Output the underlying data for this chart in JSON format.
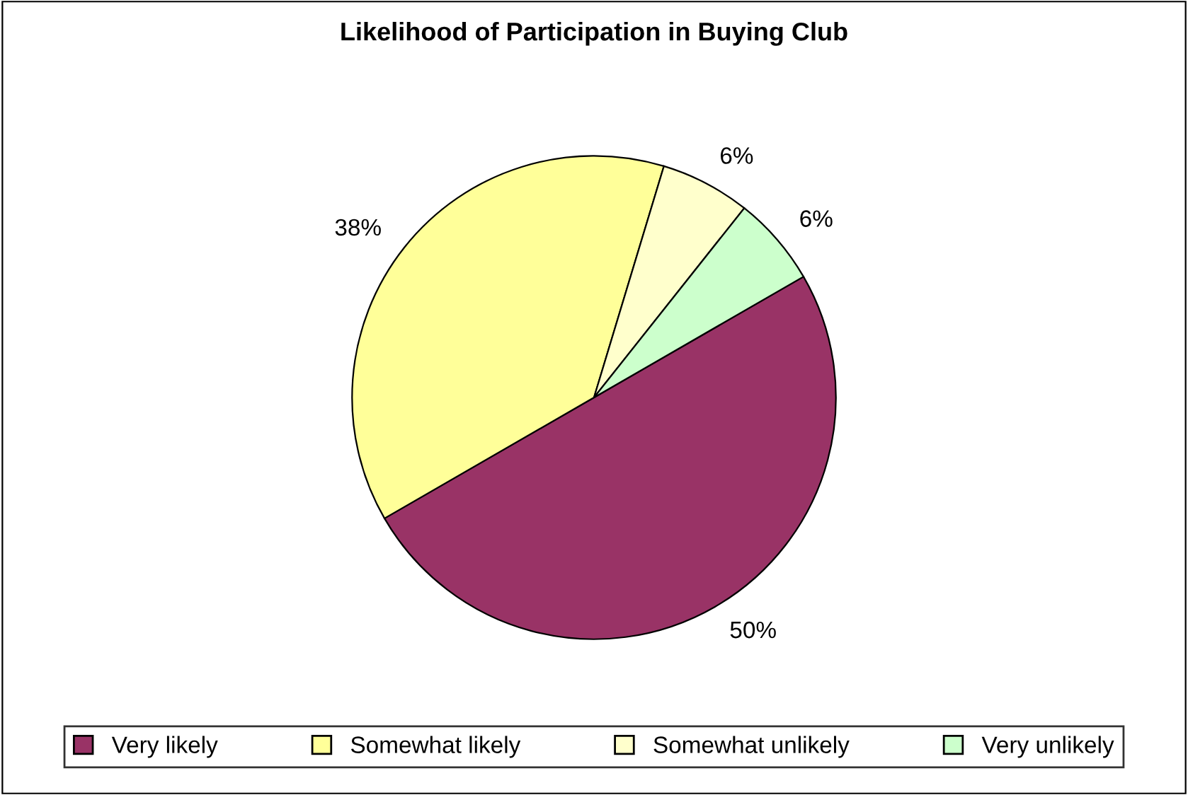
{
  "chart_data": {
    "type": "pie",
    "title": "Likelihood of Participation in Buying Club",
    "categories": [
      "Very likely",
      "Somewhat likely",
      "Somewhat unlikely",
      "Very unlikely"
    ],
    "values": [
      50,
      38,
      6,
      6
    ],
    "colors": [
      "#993366",
      "#ffff99",
      "#ffffcc",
      "#ccffcc"
    ],
    "value_labels": [
      "50%",
      "38%",
      "6%",
      "6%"
    ],
    "legend": "bottom"
  }
}
